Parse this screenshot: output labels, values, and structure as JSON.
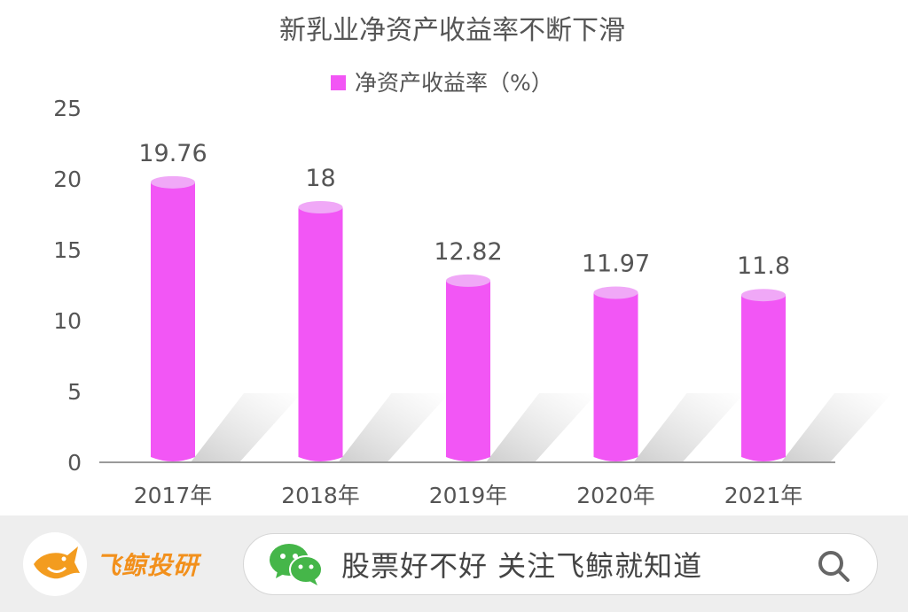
{
  "chart_data": {
    "type": "bar",
    "title": "新乳业净资产收益率不断下滑",
    "categories": [
      "2017年",
      "2018年",
      "2019年",
      "2020年",
      "2021年"
    ],
    "series": [
      {
        "name": "净资产收益率（%）",
        "values": [
          19.76,
          18,
          12.82,
          11.97,
          11.8
        ]
      }
    ],
    "data_labels": [
      "19.76",
      "18",
      "12.82",
      "11.97",
      "11.8"
    ],
    "yticks": [
      "0",
      "5",
      "10",
      "15",
      "20",
      "25"
    ],
    "ylim": [
      0,
      25
    ],
    "grid": false,
    "legend_position": "top-center",
    "colors": {
      "bar": "#f256f5",
      "bar_top": "#f0a8f7",
      "shadow": "#cccccc"
    }
  },
  "footer": {
    "brand_name": "飞鲸投研",
    "search_text": "股票好不好 关注飞鲸就知道",
    "icons": [
      "fish-logo-icon",
      "wechat-icon",
      "search-icon"
    ]
  }
}
